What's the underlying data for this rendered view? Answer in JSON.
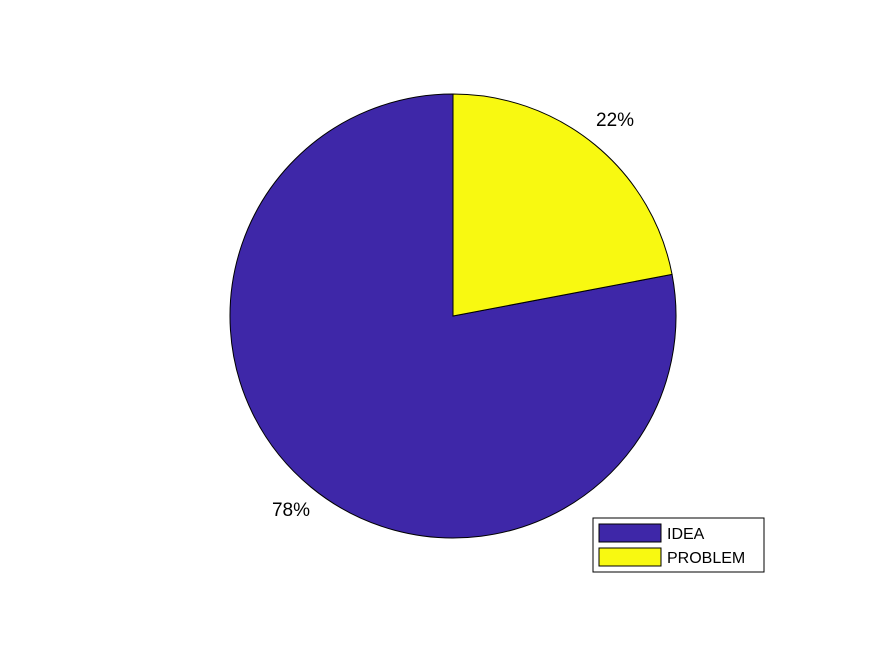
{
  "chart_data": {
    "type": "pie",
    "title": "",
    "slices": [
      {
        "label": "IDEA",
        "value": 78,
        "percent_label": "78%",
        "color": "#3e27a8"
      },
      {
        "label": "PROBLEM",
        "value": 22,
        "percent_label": "22%",
        "color": "#f8f911"
      }
    ],
    "start_angle_deg": 90,
    "direction": "clockwise-from-top-for-last-slice",
    "legend": {
      "placement": "bottom-right",
      "entries": [
        "IDEA",
        "PROBLEM"
      ]
    }
  }
}
